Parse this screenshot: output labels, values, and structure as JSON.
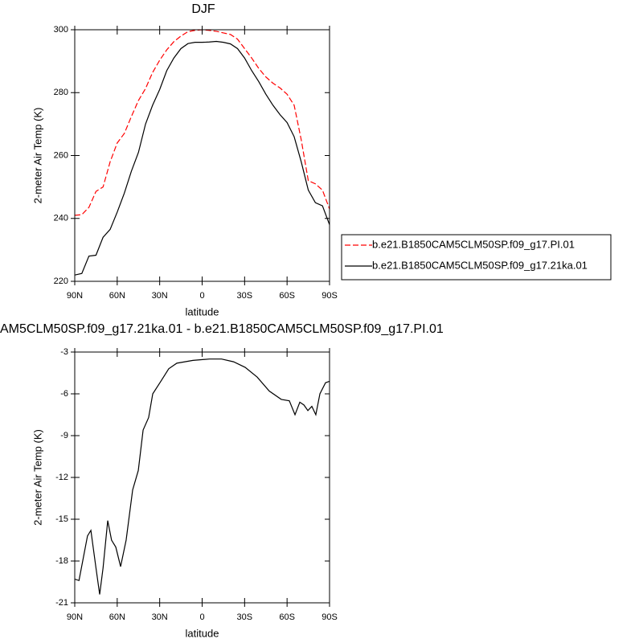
{
  "chart_data": [
    {
      "type": "line",
      "title": "DJF",
      "xlabel": "latitude",
      "ylabel": "2-meter Air Temp (K)",
      "xlim": [
        90,
        -90
      ],
      "xticks": [
        {
          "value": 90,
          "label": "90N"
        },
        {
          "value": 60,
          "label": "60N"
        },
        {
          "value": 30,
          "label": "30N"
        },
        0,
        {
          "value": -30,
          "label": "30S"
        },
        {
          "value": -60,
          "label": "60S"
        },
        {
          "value": -90,
          "label": "90S"
        }
      ],
      "ylim": [
        220,
        300
      ],
      "yticks": [
        220,
        240,
        260,
        280,
        300
      ],
      "legend": "right",
      "x": [
        90,
        85,
        80,
        75,
        70,
        65,
        60,
        55,
        50,
        45,
        40,
        35,
        30,
        25,
        20,
        15,
        10,
        5,
        0,
        -5,
        -10,
        -15,
        -20,
        -25,
        -30,
        -35,
        -40,
        -45,
        -50,
        -55,
        -60,
        -65,
        -70,
        -75,
        -80,
        -85,
        -90
      ],
      "series": [
        {
          "name": "b.e21.B1850CAM5CLM50SP.f09_g17.PI.01",
          "color": "#ff0000",
          "dashed": true,
          "values": [
            241,
            241.2,
            243.5,
            248.6,
            250,
            258,
            264,
            267,
            272.4,
            277.5,
            281.3,
            286.4,
            290.3,
            293.6,
            296.2,
            298,
            299.4,
            299.8,
            300,
            299.8,
            299.5,
            299,
            298.5,
            297,
            294,
            291,
            287.7,
            285,
            283,
            281.5,
            279.5,
            276,
            265,
            252,
            251,
            249,
            243
          ]
        },
        {
          "name": "b.e21.B1850CAM5CLM50SP.f09_g17.21ka.01",
          "color": "#000000",
          "dashed": false,
          "values": [
            222,
            222.5,
            228,
            228.3,
            234,
            236.5,
            242,
            248,
            255,
            261,
            270,
            276,
            281,
            287,
            291,
            294,
            295.6,
            296,
            296,
            296.1,
            296.3,
            296,
            295.5,
            294,
            291,
            287,
            283.5,
            279.5,
            276,
            273,
            270.5,
            266,
            258,
            249,
            245,
            244,
            238
          ]
        }
      ]
    },
    {
      "type": "line",
      "title": "AM5CLM50SP.f09_g17.21ka.01 - b.e21.B1850CAM5CLM50SP.f09_g17.PI.01",
      "xlabel": "latitude",
      "ylabel": "2-meter Air Temp (K)",
      "xlim": [
        90,
        -90
      ],
      "xticks": [
        {
          "value": 90,
          "label": "90N"
        },
        {
          "value": 60,
          "label": "60N"
        },
        {
          "value": 30,
          "label": "30N"
        },
        0,
        {
          "value": -30,
          "label": "30S"
        },
        {
          "value": -60,
          "label": "60S"
        },
        {
          "value": -90,
          "label": "90S"
        }
      ],
      "ylim": [
        -21,
        -3
      ],
      "yticks": [
        -21,
        -18,
        -15,
        -12,
        -9,
        -6,
        -3
      ],
      "x": [
        90,
        87,
        84,
        81,
        78.6,
        77,
        75,
        72.4,
        70,
        66.7,
        64,
        61,
        57.6,
        53.7,
        49.1,
        45.1,
        41.7,
        37.8,
        34.9,
        29.2,
        23.6,
        17.9,
        6.5,
        -5.2,
        -13.7,
        -22.2,
        -30.4,
        -38.9,
        -47.4,
        -55.9,
        -61.6,
        -65.6,
        -69,
        -71.9,
        -74.7,
        -77.5,
        -80.3,
        -83.2,
        -87.2,
        -90
      ],
      "series": [
        {
          "color": "#000000",
          "dashed": false,
          "values": [
            -19.3,
            -19.4,
            -17.8,
            -16.2,
            -15.8,
            -17,
            -18.5,
            -20.4,
            -18.5,
            -15.1,
            -16.5,
            -17,
            -18.4,
            -16.5,
            -12.9,
            -11.5,
            -8.6,
            -7.7,
            -6,
            -5.1,
            -4.2,
            -3.8,
            -3.6,
            -3.5,
            -3.5,
            -3.7,
            -4.1,
            -4.8,
            -5.8,
            -6.4,
            -6.5,
            -7.5,
            -6.6,
            -6.8,
            -7.2,
            -6.9,
            -7.5,
            -6,
            -5.2,
            -5.1
          ]
        }
      ]
    }
  ]
}
